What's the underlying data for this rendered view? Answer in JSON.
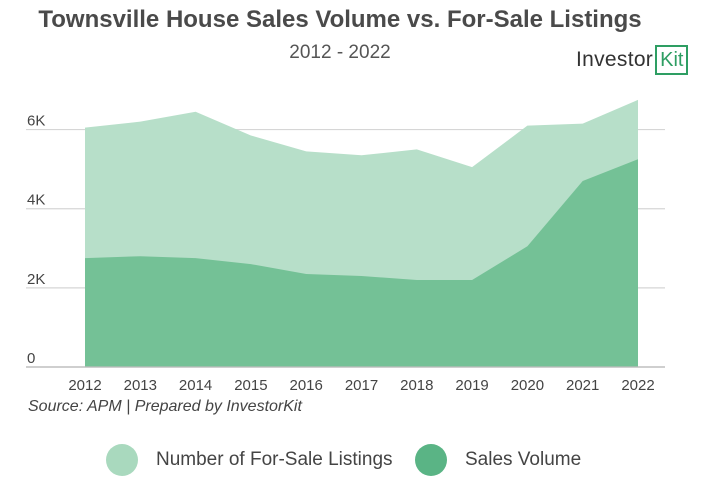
{
  "chart_data": {
    "type": "area",
    "title": "Townsville House Sales Volume vs. For-Sale Listings",
    "subtitle": "2012 - 2022",
    "x": [
      "2012",
      "2013",
      "2014",
      "2015",
      "2016",
      "2017",
      "2018",
      "2019",
      "2020",
      "2021",
      "2022"
    ],
    "series": [
      {
        "name": "Number of For-Sale Listings",
        "color": "#b7dfc9",
        "values": [
          6050,
          6200,
          6450,
          5850,
          5450,
          5350,
          5500,
          5050,
          6100,
          6150,
          6750
        ]
      },
      {
        "name": "Sales Volume",
        "color": "#74c196",
        "values": [
          2750,
          2800,
          2750,
          2600,
          2350,
          2300,
          2200,
          2200,
          3050,
          4700,
          5250
        ]
      }
    ],
    "ylim": [
      0,
      7000
    ],
    "yticks": [
      0,
      2000,
      4000,
      6000
    ],
    "ytick_labels": [
      "0",
      "2K",
      "4K",
      "6K"
    ],
    "grid": true,
    "legend_position": "bottom"
  },
  "logo": {
    "text": "Investor",
    "box_text": "Kit"
  },
  "source": "Source: APM | Prepared by InvestorKit",
  "legend": [
    {
      "label": "Number of For-Sale Listings",
      "color": "#a9d9be"
    },
    {
      "label": "Sales Volume",
      "color": "#5ab485"
    }
  ]
}
